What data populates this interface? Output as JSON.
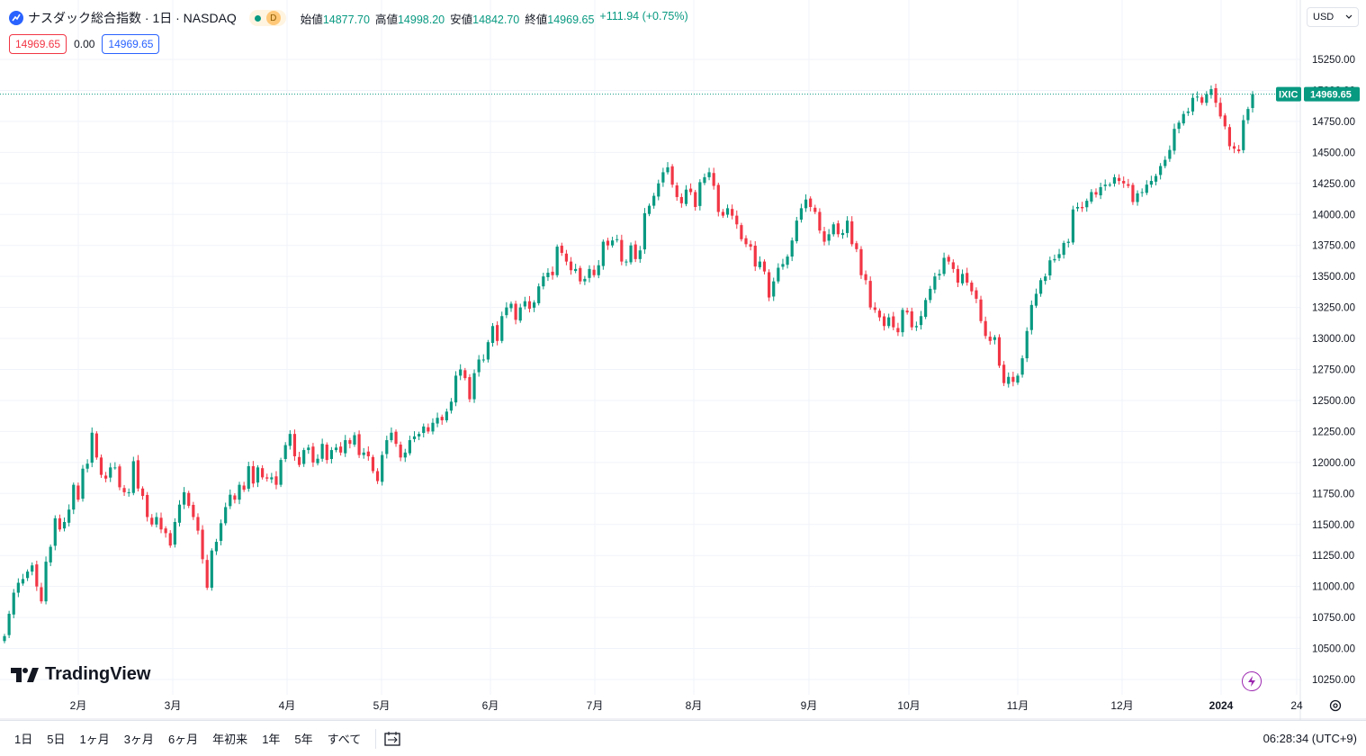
{
  "header": {
    "symbol_title": "ナスダック総合指数 · 1日 · NASDAQ",
    "status_badge": "D",
    "ohlc": {
      "open_label": "始値",
      "open": "14877.70",
      "high_label": "高値",
      "high": "14998.20",
      "low_label": "安値",
      "low": "14842.70",
      "close_label": "終値",
      "close": "14969.65",
      "change": "+111.94 (+0.75%)"
    },
    "bid": "14969.65",
    "spread": "0.00",
    "ask": "14969.65",
    "currency": "USD"
  },
  "price_tag": {
    "symbol": "IXIC",
    "price": "14969.65"
  },
  "logo_text": "TradingView",
  "timeframes": [
    "1日",
    "5日",
    "1ヶ月",
    "3ヶ月",
    "6ヶ月",
    "年初来",
    "1年",
    "5年",
    "すべて"
  ],
  "clock": "06:28:34 (UTC+9)",
  "colors": {
    "up": "#089981",
    "down": "#f23645",
    "accent": "#2962ff"
  },
  "chart_data": {
    "type": "candlestick",
    "y_ticks": [
      "15250.00",
      "15000.00",
      "14750.00",
      "14500.00",
      "14250.00",
      "14000.00",
      "13750.00",
      "13500.00",
      "13250.00",
      "13000.00",
      "12750.00",
      "12500.00",
      "12250.00",
      "12000.00",
      "11750.00",
      "11500.00",
      "11250.00",
      "11000.00",
      "10750.00",
      "10500.00",
      "10250.00"
    ],
    "ylim": [
      10100,
      15400
    ],
    "x_labels": [
      "2月",
      "3月",
      "4月",
      "5月",
      "6月",
      "7月",
      "8月",
      "9月",
      "10月",
      "11月",
      "12月",
      "2024",
      "24"
    ],
    "last_price": 14969.65,
    "closes": [
      10600,
      10780,
      10950,
      11030,
      11060,
      11120,
      11170,
      11000,
      10880,
      11200,
      11320,
      11550,
      11460,
      11520,
      11620,
      11820,
      11700,
      11950,
      11990,
      12240,
      12040,
      11900,
      11870,
      11960,
      11960,
      11800,
      11760,
      11760,
      12010,
      11790,
      11730,
      11560,
      11500,
      11560,
      11460,
      11430,
      11330,
      11520,
      11660,
      11760,
      11650,
      11560,
      11450,
      11220,
      10990,
      11290,
      11360,
      11510,
      11640,
      11740,
      11700,
      11820,
      11780,
      11970,
      11830,
      11960,
      11880,
      11870,
      11880,
      11820,
      12020,
      12140,
      12230,
      12050,
      11980,
      12100,
      12120,
      12000,
      12030,
      12150,
      12020,
      12100,
      12120,
      12080,
      12180,
      12150,
      12220,
      12060,
      12080,
      12050,
      11930,
      11850,
      12060,
      12180,
      12240,
      12150,
      12040,
      12080,
      12180,
      12210,
      12230,
      12290,
      12250,
      12320,
      12360,
      12340,
      12410,
      12490,
      12700,
      12750,
      12680,
      12510,
      12720,
      12830,
      12830,
      12970,
      13100,
      12980,
      13180,
      13250,
      13280,
      13150,
      13250,
      13300,
      13240,
      13290,
      13420,
      13500,
      13530,
      13510,
      13740,
      13690,
      13620,
      13550,
      13560,
      13460,
      13480,
      13560,
      13510,
      13590,
      13780,
      13750,
      13790,
      13800,
      13620,
      13620,
      13750,
      13640,
      13710,
      14010,
      14070,
      14150,
      14250,
      14340,
      14380,
      14240,
      14140,
      14090,
      14200,
      14180,
      14060,
      14260,
      14300,
      14340,
      14230,
      14020,
      13990,
      14050,
      13990,
      13920,
      13800,
      13760,
      13740,
      13580,
      13620,
      13540,
      13330,
      13460,
      13570,
      13600,
      13660,
      13790,
      13950,
      14050,
      14120,
      14060,
      14020,
      13870,
      13780,
      13840,
      13920,
      13840,
      13850,
      13950,
      13760,
      13720,
      13510,
      13470,
      13250,
      13230,
      13170,
      13100,
      13170,
      13090,
      13050,
      13230,
      13210,
      13090,
      13100,
      13180,
      13310,
      13400,
      13500,
      13520,
      13650,
      13620,
      13560,
      13450,
      13520,
      13450,
      13380,
      13320,
      13140,
      13020,
      12980,
      13010,
      12780,
      12640,
      12690,
      12650,
      12700,
      12840,
      13060,
      13270,
      13360,
      13470,
      13500,
      13630,
      13640,
      13680,
      13770,
      13780,
      14040,
      14060,
      14050,
      14110,
      14180,
      14160,
      14220,
      14240,
      14240,
      14300,
      14270,
      14250,
      14230,
      14100,
      14170,
      14180,
      14240,
      14270,
      14310,
      14390,
      14440,
      14520,
      14690,
      14740,
      14810,
      14830,
      14940,
      14950,
      14900,
      14970,
      15010,
      14900,
      14790,
      14710,
      14550,
      14530,
      14510,
      14760,
      14850,
      14970
    ]
  }
}
